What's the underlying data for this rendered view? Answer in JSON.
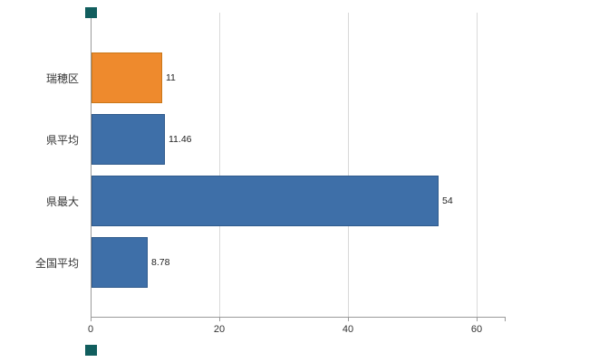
{
  "chart_data": {
    "type": "bar",
    "orientation": "horizontal",
    "title": "",
    "xlabel": "",
    "ylabel": "",
    "categories": [
      "瑞穂区",
      "県平均",
      "県最大",
      "全国平均"
    ],
    "values": [
      11,
      11.46,
      54,
      8.78
    ],
    "value_labels": [
      "11",
      "11.46",
      "54",
      "8.78"
    ],
    "bar_colors": [
      "#ee8a2d",
      "#3e6fa8",
      "#3e6fa8",
      "#3e6fa8"
    ],
    "bar_border_colors": [
      "#c97718",
      "#2f5a8c",
      "#2f5a8c",
      "#2f5a8c"
    ],
    "xlim": [
      0,
      64.4
    ],
    "xticks": [
      0,
      20,
      40,
      60
    ],
    "grid": "vertical",
    "legend": "none"
  },
  "colors": {
    "background": "#ffffff",
    "grid": "#d9d9d9",
    "axis": "#9a9a9a",
    "text": "#333333",
    "corner_marker": "#115e5e"
  }
}
